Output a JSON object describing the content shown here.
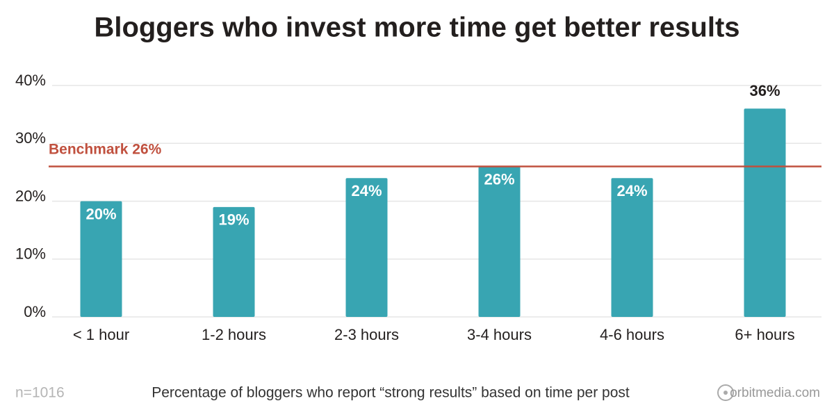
{
  "chart_data": {
    "type": "bar",
    "title": "Bloggers who invest more time get better results",
    "categories": [
      "< 1 hour",
      "1-2 hours",
      "2-3 hours",
      "3-4 hours",
      "4-6 hours",
      "6+ hours"
    ],
    "values": [
      20,
      19,
      24,
      26,
      24,
      36
    ],
    "value_labels": [
      "20%",
      "19%",
      "24%",
      "26%",
      "24%",
      "36%"
    ],
    "color": "#38a5b2",
    "ylim": [
      0,
      40
    ],
    "yticks": [
      {
        "value": 0,
        "label": "0%"
      },
      {
        "value": 10,
        "label": "10%"
      },
      {
        "value": 20,
        "label": "20%"
      },
      {
        "value": 30,
        "label": "30%"
      },
      {
        "value": 40,
        "label": "40%"
      }
    ],
    "grid": true,
    "benchmark": {
      "label": "Benchmark 26%",
      "value": 26,
      "color": "#c0503e"
    },
    "sample_note": "n=1016",
    "caption": "Percentage of bloggers who report “strong results” based on time per post",
    "source": "orbitmedia.com"
  }
}
